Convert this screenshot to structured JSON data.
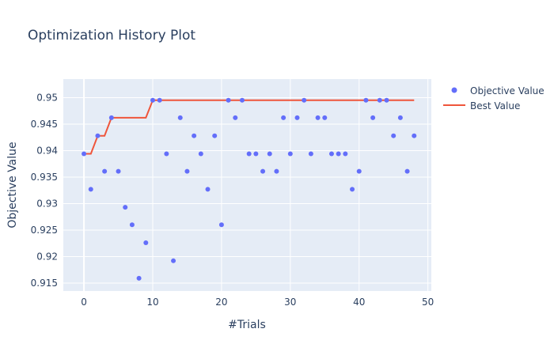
{
  "chart_data": {
    "type": "scatter",
    "title": "Optimization History Plot",
    "xlabel": "#Trials",
    "ylabel": "Objective Value",
    "xlim": [
      -3,
      50.5
    ],
    "ylim": [
      0.9135,
      0.9535
    ],
    "xticks": [
      0,
      10,
      20,
      30,
      40,
      50
    ],
    "yticks": [
      0.915,
      0.92,
      0.925,
      0.93,
      0.935,
      0.94,
      0.945,
      0.95
    ],
    "ytick_labels": [
      "0.915",
      "0.92",
      "0.925",
      "0.93",
      "0.935",
      "0.94",
      "0.945",
      "0.95"
    ],
    "grid": true,
    "legend_position": "right",
    "series": [
      {
        "name": "Objective Value",
        "kind": "markers",
        "color": "#636efa",
        "x": [
          0,
          1,
          2,
          3,
          4,
          5,
          6,
          7,
          8,
          9,
          10,
          11,
          12,
          13,
          14,
          15,
          16,
          17,
          18,
          19,
          20,
          21,
          22,
          23,
          24,
          25,
          26,
          27,
          28,
          29,
          30,
          31,
          32,
          33,
          34,
          35,
          36,
          37,
          38,
          39,
          40,
          41,
          42,
          43,
          44,
          45,
          46,
          47,
          48
        ],
        "y": [
          0.9394,
          0.9327,
          0.9428,
          0.9361,
          0.9462,
          0.9361,
          0.9293,
          0.926,
          0.9159,
          0.9226,
          0.9495,
          0.9495,
          0.9394,
          0.9192,
          0.9462,
          0.9361,
          0.9428,
          0.9394,
          0.9327,
          0.9428,
          0.926,
          0.9495,
          0.9462,
          0.9495,
          0.9394,
          0.9394,
          0.9361,
          0.9394,
          0.9361,
          0.9462,
          0.9394,
          0.9462,
          0.9495,
          0.9394,
          0.9462,
          0.9462,
          0.9394,
          0.9394,
          0.9394,
          0.9327,
          0.9361,
          0.9495,
          0.9462,
          0.9495,
          0.9495,
          0.9428,
          0.9462,
          0.9361,
          0.9428
        ]
      },
      {
        "name": "Best Value",
        "kind": "line",
        "color": "#ef553b",
        "x": [
          0,
          1,
          2,
          3,
          4,
          5,
          6,
          7,
          8,
          9,
          10,
          11,
          12,
          13,
          14,
          15,
          16,
          17,
          18,
          19,
          20,
          21,
          22,
          23,
          24,
          25,
          26,
          27,
          28,
          29,
          30,
          31,
          32,
          33,
          34,
          35,
          36,
          37,
          38,
          39,
          40,
          41,
          42,
          43,
          44,
          45,
          46,
          47,
          48
        ],
        "y": [
          0.9394,
          0.9394,
          0.9428,
          0.9428,
          0.9462,
          0.9462,
          0.9462,
          0.9462,
          0.9462,
          0.9462,
          0.9495,
          0.9495,
          0.9495,
          0.9495,
          0.9495,
          0.9495,
          0.9495,
          0.9495,
          0.9495,
          0.9495,
          0.9495,
          0.9495,
          0.9495,
          0.9495,
          0.9495,
          0.9495,
          0.9495,
          0.9495,
          0.9495,
          0.9495,
          0.9495,
          0.9495,
          0.9495,
          0.9495,
          0.9495,
          0.9495,
          0.9495,
          0.9495,
          0.9495,
          0.9495,
          0.9495,
          0.9495,
          0.9495,
          0.9495,
          0.9495,
          0.9495,
          0.9495,
          0.9495,
          0.9495
        ]
      }
    ]
  }
}
